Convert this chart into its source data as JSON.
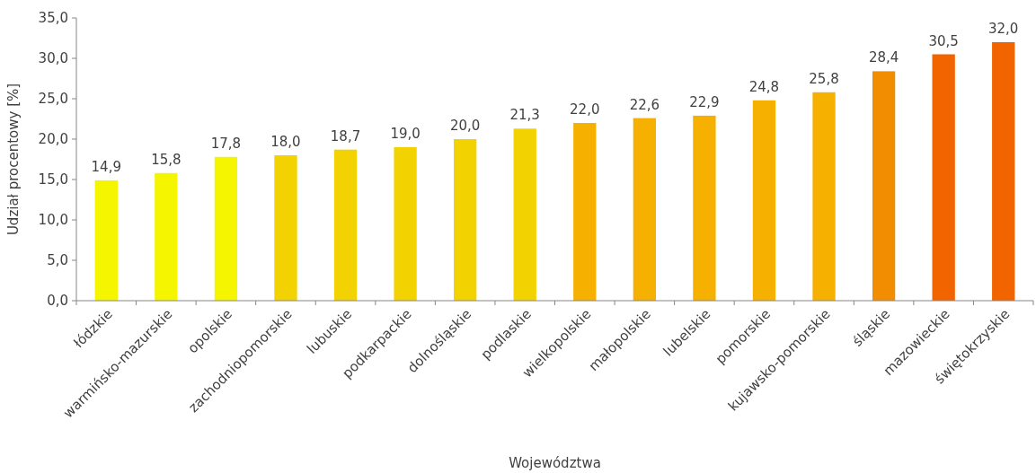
{
  "chart_data": {
    "type": "bar",
    "xlabel": "Województwa",
    "ylabel": "Udział procentowy [%]",
    "categories": [
      "łódzkie",
      "warmińsko-mazurskie",
      "opolskie",
      "zachodniopomorskie",
      "lubuskie",
      "podkarpackie",
      "dolnośląskie",
      "podlaskie",
      "wielkopolskie",
      "małopolskie",
      "lubelskie",
      "pomorskie",
      "kujawsko-pomorskie",
      "śląskie",
      "mazowieckie",
      "świętokrzyskie"
    ],
    "values": [
      14.9,
      15.8,
      17.8,
      18.0,
      18.7,
      19.0,
      20.0,
      21.3,
      22.0,
      22.6,
      22.9,
      24.8,
      25.8,
      28.4,
      30.5,
      32.0
    ],
    "value_labels": [
      "14,9",
      "15,8",
      "17,8",
      "18,0",
      "18,7",
      "19,0",
      "20,0",
      "21,3",
      "22,0",
      "22,6",
      "22,9",
      "24,8",
      "25,8",
      "28,4",
      "30,5",
      "32,0"
    ],
    "colors": [
      "#f5f500",
      "#f5f500",
      "#f5f500",
      "#f2d200",
      "#f2d200",
      "#f2d200",
      "#f2d200",
      "#f2d200",
      "#f5b000",
      "#f5b000",
      "#f5b000",
      "#f5b000",
      "#f5b000",
      "#f28c00",
      "#f26400",
      "#f26400"
    ],
    "ylim": [
      0,
      35
    ],
    "yticks": [
      {
        "value": 0,
        "label": "0,0"
      },
      {
        "value": 5,
        "label": "5,0"
      },
      {
        "value": 10,
        "label": "10,0"
      },
      {
        "value": 15,
        "label": "15,0"
      },
      {
        "value": 20,
        "label": "20,0"
      },
      {
        "value": 25,
        "label": "25,0"
      },
      {
        "value": 30,
        "label": "30,0"
      },
      {
        "value": 35,
        "label": "35,0"
      }
    ],
    "grid": false
  }
}
